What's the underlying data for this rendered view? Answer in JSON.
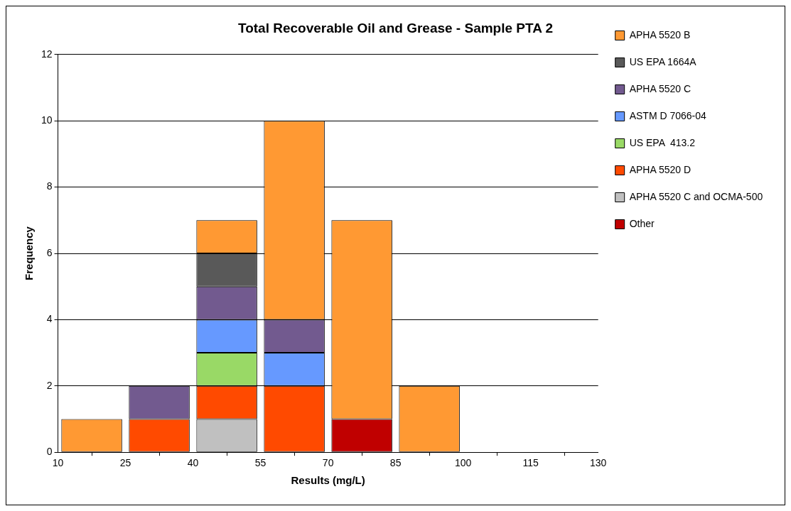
{
  "chart_data": {
    "type": "bar",
    "title": "Total Recoverable Oil and Grease - Sample PTA 2",
    "xlabel": "Results (mg/L)",
    "ylabel": "Frequency",
    "x": [
      17.5,
      32.5,
      47.5,
      62.5,
      77.5,
      92.5,
      107.5,
      122.5
    ],
    "stacked": true,
    "series": [
      {
        "name": "Other",
        "color": "#c00000",
        "values": [
          0,
          0,
          0,
          0,
          1,
          0,
          0,
          0
        ]
      },
      {
        "name": "APHA 5520 C and OCMA-500",
        "color": "#c0c0c0",
        "values": [
          0,
          0,
          1,
          0,
          0,
          0,
          0,
          0
        ]
      },
      {
        "name": "APHA 5520 D",
        "color": "#ff4a00",
        "values": [
          0,
          1,
          1,
          2,
          0,
          0,
          0,
          0
        ]
      },
      {
        "name": "US EPA  413.2",
        "color": "#99d966",
        "values": [
          0,
          0,
          1,
          0,
          0,
          0,
          0,
          0
        ]
      },
      {
        "name": "ASTM D 7066-04",
        "color": "#6699ff",
        "values": [
          0,
          0,
          1,
          1,
          0,
          0,
          0,
          0
        ]
      },
      {
        "name": "APHA 5520 C",
        "color": "#725a8f",
        "values": [
          0,
          1,
          1,
          1,
          0,
          0,
          0,
          0
        ]
      },
      {
        "name": "US EPA 1664A",
        "color": "#595959",
        "values": [
          0,
          0,
          1,
          0,
          0,
          0,
          0,
          0
        ]
      },
      {
        "name": "APHA 5520 B",
        "color": "#ff9933",
        "values": [
          1,
          0,
          1,
          6,
          6,
          2,
          0,
          0
        ]
      }
    ],
    "xlim": [
      10,
      130
    ],
    "xticks": [
      10,
      25,
      40,
      55,
      70,
      85,
      100,
      115,
      130
    ],
    "ylim": [
      0,
      12
    ],
    "yticks": [
      0,
      2,
      4,
      6,
      8,
      10,
      12
    ],
    "grid": "y",
    "legend": "right"
  }
}
